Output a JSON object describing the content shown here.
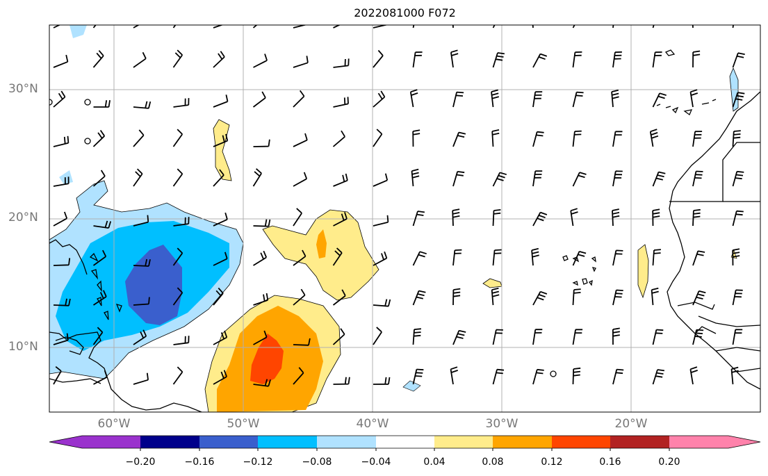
{
  "title": "2022081000 F072",
  "lat_labels": [
    "30°N",
    "20°N",
    "10°N"
  ],
  "lon_labels": [
    "60°W",
    "50°W",
    "40°W",
    "30°W",
    "20°W"
  ],
  "colorbar": {
    "ticks": [
      "−0.20",
      "−0.16",
      "−0.12",
      "−0.08",
      "−0.04",
      "0.04",
      "0.08",
      "0.12",
      "0.16",
      "0.20"
    ],
    "colors": [
      "#9a32cd",
      "#00008b",
      "#3a5fcd",
      "#00bfff",
      "#b0e2ff",
      "#ffffff",
      "#ffec8b",
      "#ffa500",
      "#ff4500",
      "#b22222",
      "#ff82ab"
    ]
  },
  "colors": {
    "grid": "#b0b0b0",
    "coast": "#000000",
    "barb": "#000000"
  }
}
